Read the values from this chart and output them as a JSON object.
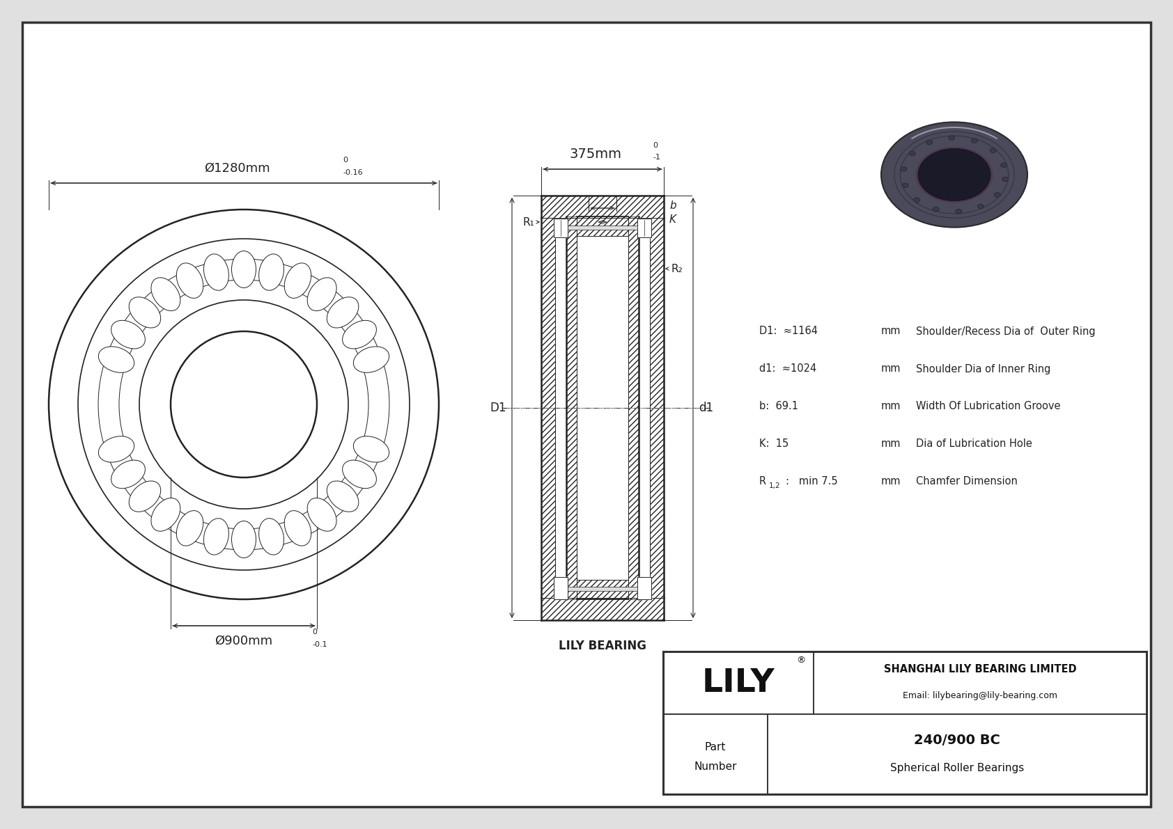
{
  "bg_color": "#e0e0e0",
  "drawing_bg": "#ffffff",
  "border_color": "#333333",
  "line_color": "#222222",
  "outer_diam_label": "Ø1280mm",
  "outer_diam_tol_top": "0",
  "outer_diam_tol_bot": "-0.16",
  "inner_diam_label": "Ø900mm",
  "inner_diam_tol_top": "0",
  "inner_diam_tol_bot": "-0.1",
  "width_label": "375mm",
  "width_tol_top": "0",
  "width_tol_bot": "-1",
  "D1_val": "≈1164",
  "D1_unit": "mm",
  "D1_desc": "Shoulder/Recess Dia of  Outer Ring",
  "d1_val": "≈1024",
  "d1_unit": "mm",
  "d1_desc": "Shoulder Dia of Inner Ring",
  "b_val": "69.1",
  "b_unit": "mm",
  "b_desc": "Width Of Lubrication Groove",
  "K_val": "15",
  "K_unit": "mm",
  "K_desc": "Dia of Lubrication Hole",
  "R_val": "min 7.5",
  "R_unit": "mm",
  "R_desc": "Chamfer Dimension",
  "company": "SHANGHAI LILY BEARING LIMITED",
  "email": "Email: lilybearing@lily-bearing.com",
  "lily_text": "LILY",
  "part_label1": "Part",
  "part_label2": "Number",
  "part_number": "240/900 BC",
  "part_type": "Spherical Roller Bearings",
  "lily_bearing_label": "LILY BEARING"
}
